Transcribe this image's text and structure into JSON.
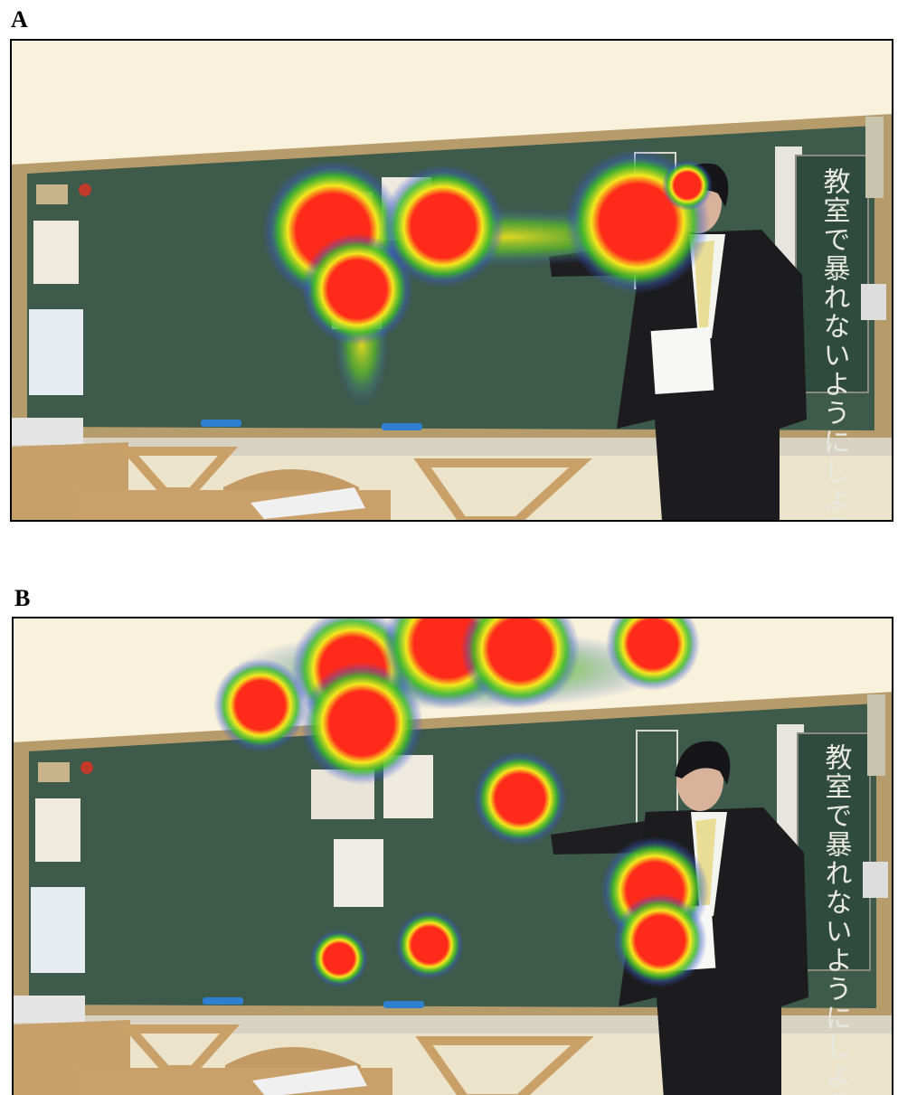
{
  "panels": [
    {
      "label": "A",
      "board_sign": "教室で暴れないようにしよう"
    },
    {
      "label": "B",
      "board_sign": "教室で暴れないようにしよう"
    }
  ]
}
